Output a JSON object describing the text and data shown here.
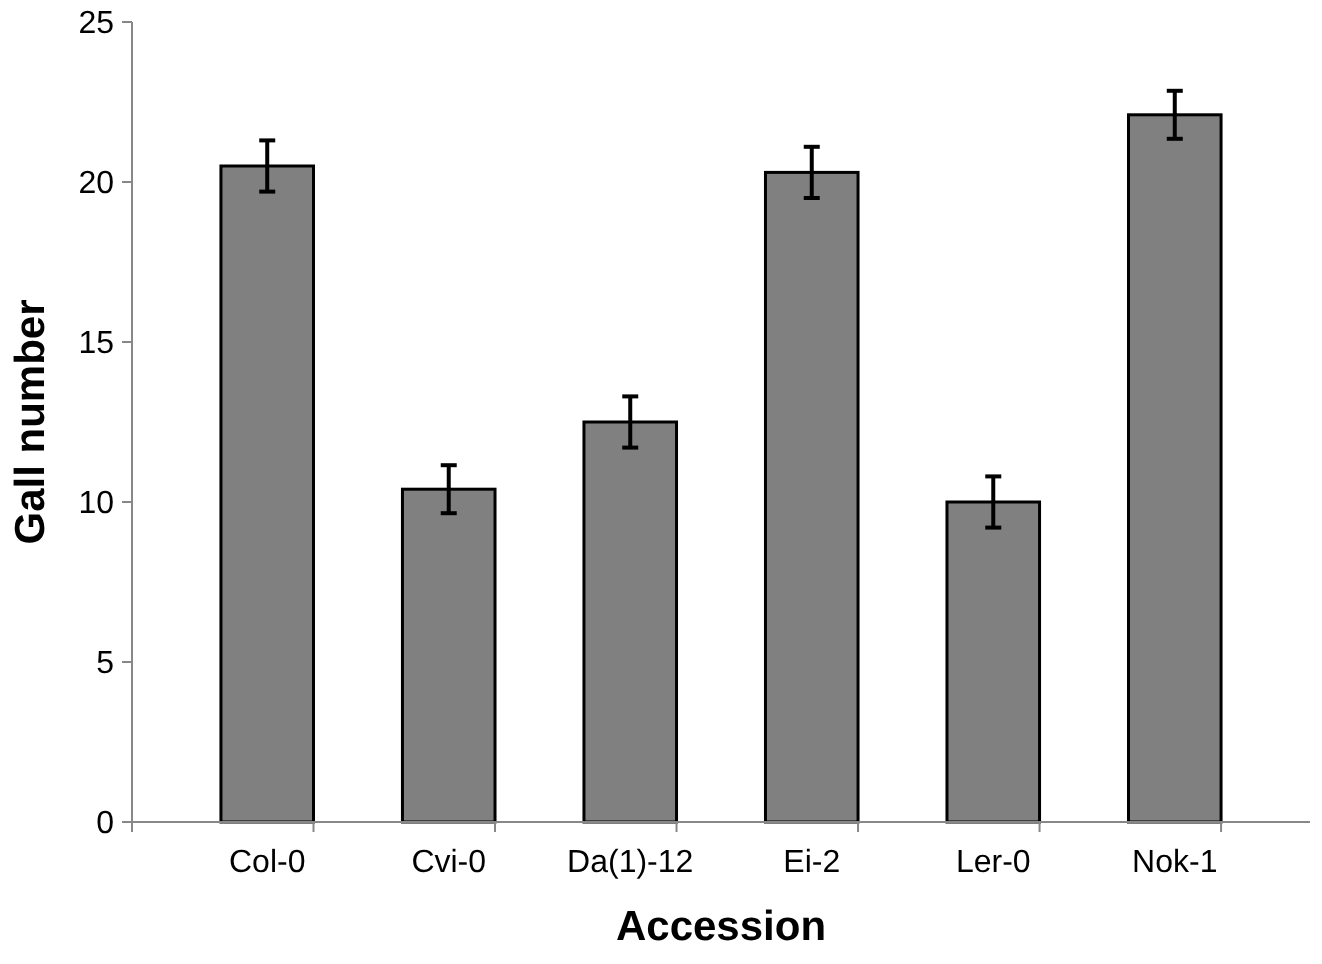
{
  "chart_data": {
    "type": "bar",
    "xlabel": "Accession",
    "ylabel": "Gall number",
    "categories": [
      "Col-0",
      "Cvi-0",
      "Da(1)-12",
      "Ei-2",
      "Ler-0",
      "Nok-1"
    ],
    "values": [
      20.5,
      10.4,
      12.5,
      20.3,
      10.0,
      22.1
    ],
    "errors": [
      0.8,
      0.75,
      0.8,
      0.8,
      0.8,
      0.75
    ],
    "color": "#808080",
    "ylim": [
      0,
      25
    ],
    "yticks": [
      0,
      5,
      10,
      15,
      20,
      25
    ],
    "grid": false
  }
}
